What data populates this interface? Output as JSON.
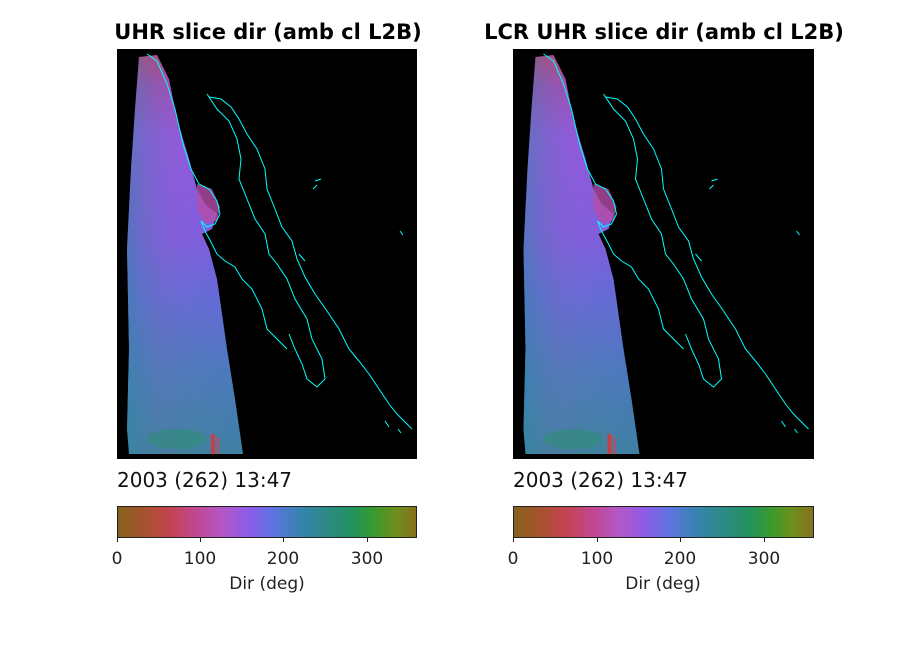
{
  "panels": [
    {
      "title": "UHR slice dir (amb cl L2B)",
      "timestamp": "2003 (262) 13:47"
    },
    {
      "title": "LCR UHR slice dir (amb cl L2B)",
      "timestamp": "2003 (262) 13:47"
    }
  ],
  "colorbar": {
    "label": "Dir (deg)",
    "ticks": [
      "0",
      "100",
      "200",
      "300"
    ],
    "range": [
      0,
      360
    ]
  },
  "colors": {
    "background": "#000000",
    "coastline": "#00ffff",
    "swath_dominant": "#8a5ce0"
  }
}
